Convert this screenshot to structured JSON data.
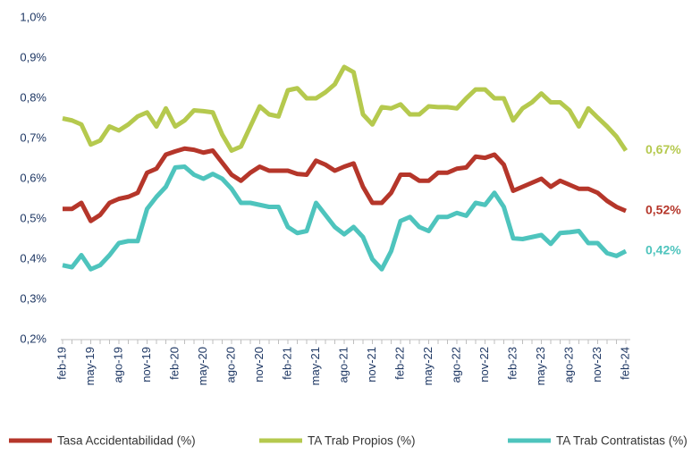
{
  "chart_data": {
    "type": "line",
    "categories": [
      "feb-19",
      null,
      null,
      "may-19",
      null,
      null,
      "ago-19",
      null,
      null,
      "nov-19",
      null,
      null,
      "feb-20",
      null,
      null,
      "may-20",
      null,
      null,
      "ago-20",
      null,
      null,
      "nov-20",
      null,
      null,
      "feb-21",
      null,
      null,
      "may-21",
      null,
      null,
      "ago-21",
      null,
      null,
      "nov-21",
      null,
      null,
      "feb-22",
      null,
      null,
      "may-22",
      null,
      null,
      "ago-22",
      null,
      null,
      "nov-22",
      null,
      null,
      "feb-23",
      null,
      null,
      "may-23",
      null,
      null,
      "ago-23",
      null,
      null,
      "nov-23",
      null,
      null,
      "feb-24"
    ],
    "series": [
      {
        "name": "Tasa Accidentabilidad (%)",
        "color": "#b5362a",
        "values": [
          0.525,
          0.525,
          0.54,
          0.495,
          0.51,
          0.54,
          0.55,
          0.555,
          0.565,
          0.615,
          0.625,
          0.66,
          0.668,
          0.675,
          0.672,
          0.665,
          0.67,
          0.64,
          0.61,
          0.595,
          0.615,
          0.63,
          0.62,
          0.62,
          0.62,
          0.612,
          0.61,
          0.645,
          0.635,
          0.62,
          0.63,
          0.638,
          0.58,
          0.54,
          0.54,
          0.565,
          0.61,
          0.61,
          0.595,
          0.595,
          0.615,
          0.615,
          0.625,
          0.628,
          0.655,
          0.652,
          0.66,
          0.635,
          0.57,
          0.58,
          0.59,
          0.6,
          0.58,
          0.595,
          0.585,
          0.575,
          0.575,
          0.565,
          0.545,
          0.53,
          0.52
        ],
        "value_labels": [
          null,
          null,
          null,
          null,
          null,
          null,
          null,
          null,
          null,
          null,
          null,
          null,
          null,
          null,
          null,
          null,
          null,
          null,
          null,
          null,
          null,
          null,
          null,
          null,
          null,
          null,
          null,
          null,
          null,
          null,
          null,
          null,
          null,
          null,
          null,
          null,
          null,
          null,
          null,
          null,
          null,
          null,
          null,
          null,
          null,
          null,
          null,
          null,
          null,
          null,
          null,
          null,
          null,
          null,
          null,
          null,
          null,
          null,
          null,
          null,
          "0,52%"
        ]
      },
      {
        "name": "TA Trab Propios (%)",
        "color": "#b5c94e",
        "values": [
          0.75,
          0.745,
          0.735,
          0.685,
          0.695,
          0.73,
          0.72,
          0.735,
          0.755,
          0.765,
          0.73,
          0.775,
          0.73,
          0.745,
          0.77,
          0.768,
          0.765,
          0.71,
          0.67,
          0.68,
          0.73,
          0.78,
          0.76,
          0.755,
          0.82,
          0.825,
          0.8,
          0.8,
          0.815,
          0.835,
          0.878,
          0.865,
          0.76,
          0.735,
          0.778,
          0.775,
          0.785,
          0.76,
          0.76,
          0.78,
          0.778,
          0.778,
          0.775,
          0.8,
          0.822,
          0.822,
          0.8,
          0.8,
          0.745,
          0.775,
          0.79,
          0.812,
          0.79,
          0.79,
          0.77,
          0.73,
          0.775,
          0.752,
          0.73,
          0.705,
          0.67
        ],
        "value_labels": [
          null,
          null,
          null,
          null,
          null,
          null,
          null,
          null,
          null,
          null,
          null,
          null,
          null,
          null,
          null,
          null,
          null,
          null,
          null,
          null,
          null,
          null,
          null,
          null,
          null,
          null,
          null,
          null,
          null,
          null,
          null,
          null,
          null,
          null,
          null,
          null,
          null,
          null,
          null,
          null,
          null,
          null,
          null,
          null,
          null,
          null,
          null,
          null,
          null,
          null,
          null,
          null,
          null,
          null,
          null,
          null,
          null,
          null,
          null,
          null,
          "0,67%"
        ]
      },
      {
        "name": "TA Trab Contratistas (%)",
        "color": "#4ec4bd",
        "values": [
          0.385,
          0.38,
          0.41,
          0.375,
          0.385,
          0.41,
          0.44,
          0.445,
          0.445,
          0.525,
          0.555,
          0.58,
          0.628,
          0.63,
          0.61,
          0.6,
          0.612,
          0.6,
          0.575,
          0.54,
          0.54,
          0.535,
          0.53,
          0.53,
          0.48,
          0.465,
          0.47,
          0.54,
          0.51,
          0.48,
          0.462,
          0.48,
          0.455,
          0.4,
          0.375,
          0.42,
          0.495,
          0.505,
          0.48,
          0.47,
          0.505,
          0.505,
          0.515,
          0.508,
          0.54,
          0.535,
          0.565,
          0.53,
          0.452,
          0.45,
          0.455,
          0.46,
          0.438,
          0.465,
          0.467,
          0.47,
          0.44,
          0.44,
          0.415,
          0.408,
          0.42
        ],
        "value_labels": [
          null,
          null,
          null,
          null,
          null,
          null,
          null,
          null,
          null,
          null,
          null,
          null,
          null,
          null,
          null,
          null,
          null,
          null,
          null,
          null,
          null,
          null,
          null,
          null,
          null,
          null,
          null,
          null,
          null,
          null,
          null,
          null,
          null,
          null,
          null,
          null,
          null,
          null,
          null,
          null,
          null,
          null,
          null,
          null,
          null,
          null,
          null,
          null,
          null,
          null,
          null,
          null,
          null,
          null,
          null,
          null,
          null,
          null,
          null,
          null,
          "0,42%"
        ]
      }
    ],
    "ylim": [
      0.2,
      1.0
    ],
    "yticks": [
      {
        "value": 0.2,
        "label": "0,2%"
      },
      {
        "value": 0.3,
        "label": "0,3%"
      },
      {
        "value": 0.4,
        "label": "0,4%"
      },
      {
        "value": 0.5,
        "label": "0,5%"
      },
      {
        "value": 0.6,
        "label": "0,6%"
      },
      {
        "value": 0.7,
        "label": "0,7%"
      },
      {
        "value": 0.8,
        "label": "0,8%"
      },
      {
        "value": 0.9,
        "label": "0,9%"
      },
      {
        "value": 1.0,
        "label": "1,0%"
      }
    ],
    "grid": false,
    "legend": "bottom"
  }
}
